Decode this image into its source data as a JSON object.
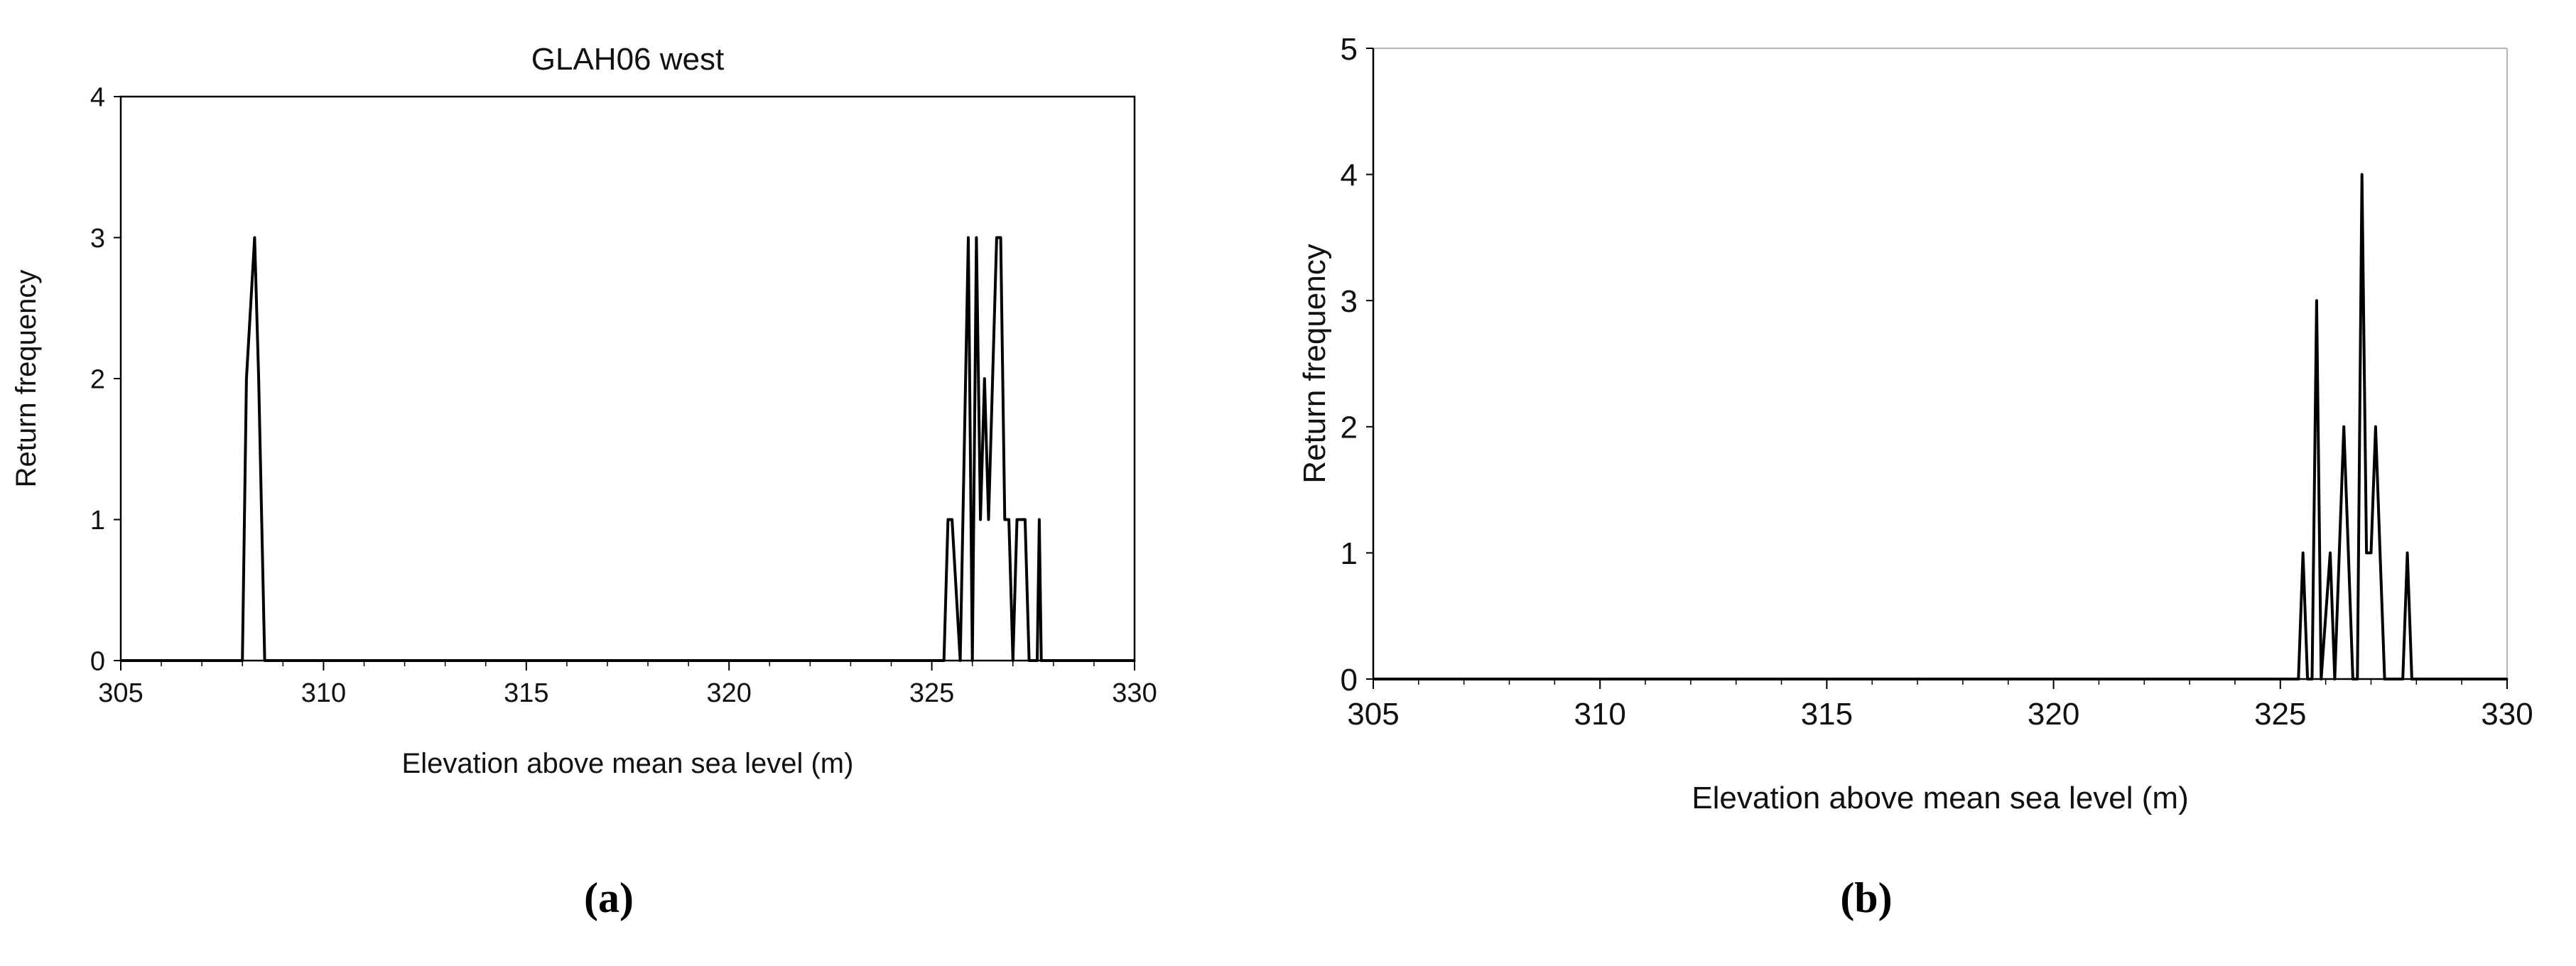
{
  "chart_data": [
    {
      "id": "a",
      "type": "line",
      "title": "GLAH06 west",
      "xlabel": "Elevation above mean sea level (m)",
      "ylabel": "Return frequency",
      "xlim": [
        305,
        330
      ],
      "ylim": [
        0,
        4
      ],
      "xticks": [
        305,
        310,
        315,
        320,
        325,
        330
      ],
      "yticks": [
        0,
        1,
        2,
        3,
        4
      ],
      "grid": false,
      "x": [
        305,
        308.0,
        308.1,
        308.3,
        308.4,
        308.55,
        325.3,
        325.4,
        325.5,
        325.7,
        325.9,
        326.0,
        326.1,
        326.2,
        326.3,
        326.4,
        326.5,
        326.6,
        326.7,
        326.8,
        326.9,
        327.0,
        327.1,
        327.2,
        327.3,
        327.4,
        327.6,
        327.65,
        327.7,
        327.8,
        330
      ],
      "y": [
        0,
        0,
        2,
        3,
        2,
        0,
        0,
        1,
        1,
        0,
        3,
        0,
        3,
        1,
        2,
        1,
        2,
        3,
        3,
        1,
        1,
        0,
        1,
        1,
        1,
        0,
        0,
        1,
        0,
        0,
        0
      ]
    },
    {
      "id": "b",
      "type": "line",
      "title": "",
      "xlabel": "Elevation above mean sea level (m)",
      "ylabel": "Return frequency",
      "xlim": [
        305,
        330
      ],
      "ylim": [
        0,
        5
      ],
      "xticks": [
        305,
        310,
        315,
        320,
        325,
        330
      ],
      "yticks": [
        0,
        1,
        2,
        3,
        4,
        5
      ],
      "grid": false,
      "x": [
        305,
        325.4,
        325.5,
        325.6,
        325.7,
        325.8,
        325.9,
        326.1,
        326.2,
        326.3,
        326.4,
        326.5,
        326.6,
        326.7,
        326.8,
        326.9,
        327.0,
        327.1,
        327.2,
        327.3,
        327.7,
        327.8,
        327.9,
        330
      ],
      "y": [
        0,
        0,
        1,
        0,
        0,
        3,
        0,
        1,
        0,
        1,
        2,
        1,
        0,
        0,
        4,
        1,
        1,
        2,
        1,
        0,
        0,
        1,
        0,
        0
      ]
    }
  ],
  "captions": {
    "a": "(a)",
    "b": "(b)"
  }
}
